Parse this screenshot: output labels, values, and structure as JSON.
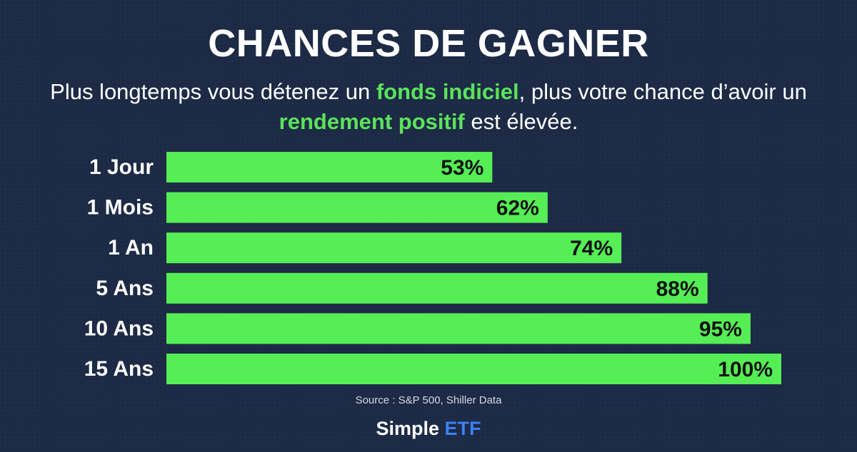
{
  "header": {
    "title": "CHANCES DE GAGNER",
    "subtitle_parts": {
      "p1": "Plus longtemps vous détenez un ",
      "h1": "fonds indiciel",
      "p2": ", plus votre chance d’avoir un ",
      "h2": "rendement positif",
      "p3": " est élevée."
    }
  },
  "chart_data": {
    "type": "bar",
    "orientation": "horizontal",
    "categories": [
      "1 Jour",
      "1 Mois",
      "1 An",
      "5 Ans",
      "10 Ans",
      "15 Ans"
    ],
    "values": [
      53,
      62,
      74,
      88,
      95,
      100
    ],
    "data_labels": [
      "53%",
      "62%",
      "74%",
      "88%",
      "95%",
      "100%"
    ],
    "xlim": [
      0,
      100
    ],
    "grid": false,
    "bar_color": "#55ee55",
    "label_color": "#111111"
  },
  "footer": {
    "source": "Source : S&P 500, Shiller Data",
    "brand_part1": "Simple",
    "brand_part2": "ETF"
  },
  "colors": {
    "background": "#1c2a45",
    "highlight": "#5be35b",
    "brand_accent": "#3b82f6"
  }
}
